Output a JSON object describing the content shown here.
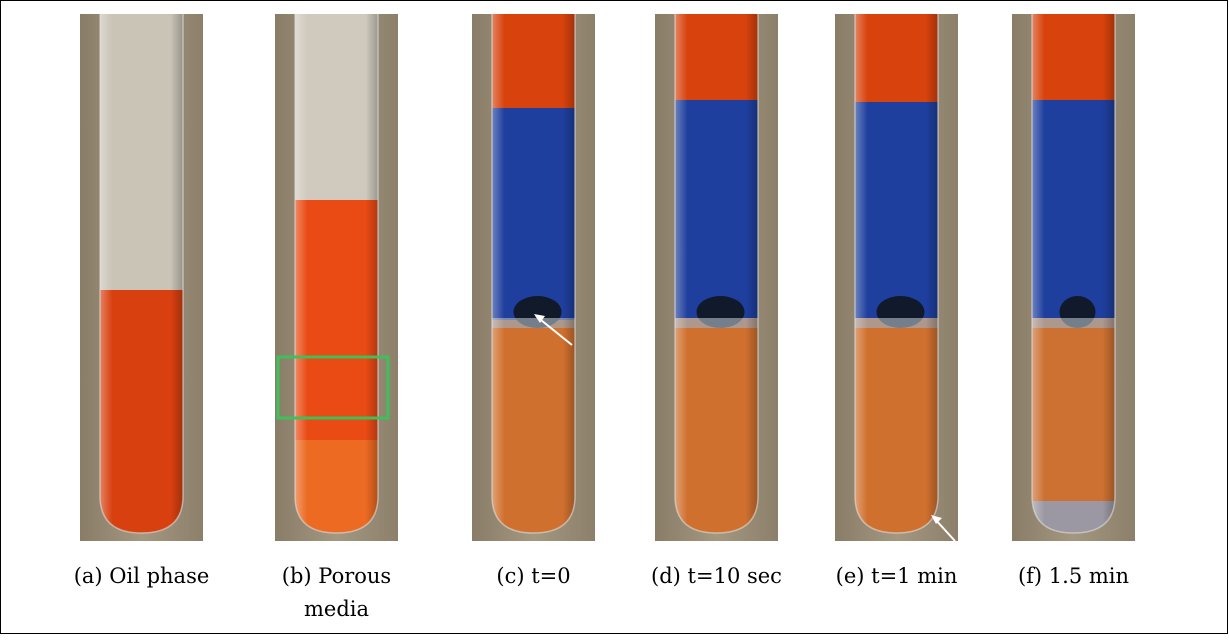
{
  "panels": [
    {
      "caption": [
        "(a) Oil phase"
      ]
    },
    {
      "caption": [
        "(b) Porous",
        "media"
      ]
    },
    {
      "caption": [
        "(c) t=0"
      ]
    },
    {
      "caption": [
        "(d) t=10 sec"
      ]
    },
    {
      "caption": [
        "(e) t=1 min"
      ]
    },
    {
      "caption": [
        "(f) 1.5 min"
      ]
    }
  ]
}
